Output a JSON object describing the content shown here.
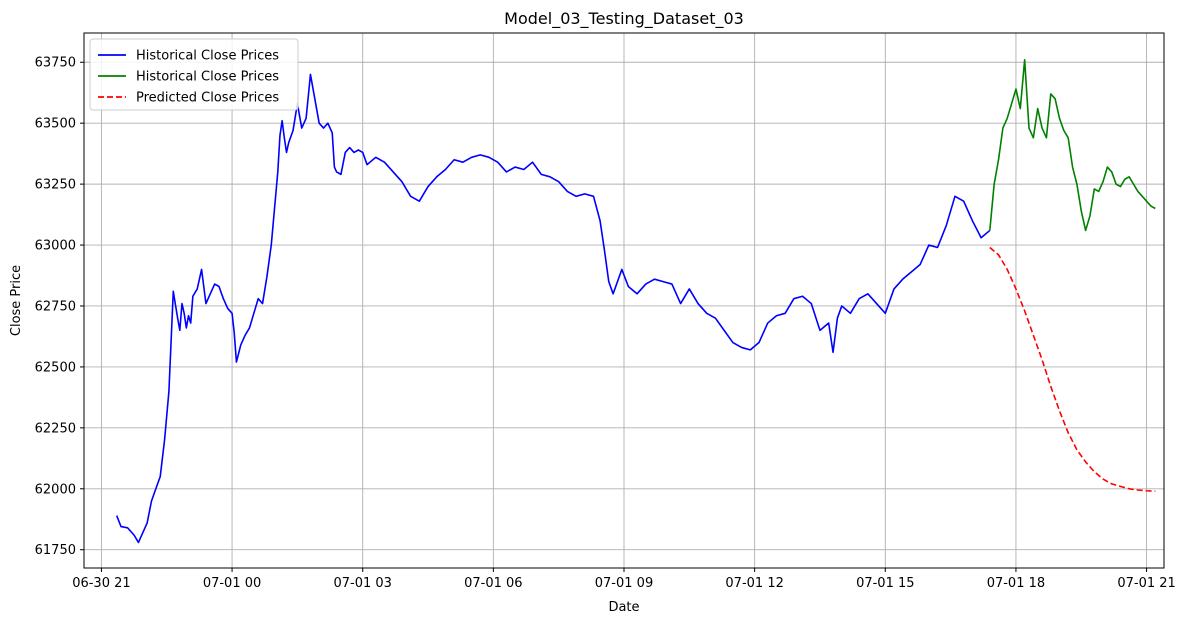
{
  "chart_data": {
    "type": "line",
    "title": "Model_03_Testing_Dataset_03",
    "xlabel": "Date",
    "ylabel": "Close Price",
    "x_unit": "hours since 06-30 21:00",
    "xlim": [
      -0.4,
      24.4
    ],
    "ylim": [
      61675,
      63870
    ],
    "x_ticks": [
      {
        "x": 0,
        "label": "06-30 21"
      },
      {
        "x": 3,
        "label": "07-01 00"
      },
      {
        "x": 6,
        "label": "07-01 03"
      },
      {
        "x": 9,
        "label": "07-01 06"
      },
      {
        "x": 12,
        "label": "07-01 09"
      },
      {
        "x": 15,
        "label": "07-01 12"
      },
      {
        "x": 18,
        "label": "07-01 15"
      },
      {
        "x": 21,
        "label": "07-01 18"
      },
      {
        "x": 24,
        "label": "07-01 21"
      }
    ],
    "y_ticks": [
      61750,
      62000,
      62250,
      62500,
      62750,
      63000,
      63250,
      63500,
      63750
    ],
    "grid": true,
    "legend_position": "top-left",
    "series": [
      {
        "name": "Historical Close Prices",
        "color": "#0000ff",
        "style": "solid",
        "x": [
          0.35,
          0.45,
          0.6,
          0.75,
          0.85,
          0.95,
          1.05,
          1.15,
          1.25,
          1.35,
          1.45,
          1.55,
          1.65,
          1.75,
          1.8,
          1.85,
          1.9,
          1.95,
          2.0,
          2.05,
          2.1,
          2.2,
          2.3,
          2.4,
          2.5,
          2.6,
          2.7,
          2.8,
          2.9,
          3.0,
          3.05,
          3.1,
          3.2,
          3.3,
          3.4,
          3.5,
          3.6,
          3.7,
          3.8,
          3.9,
          4.0,
          4.05,
          4.1,
          4.15,
          4.2,
          4.25,
          4.3,
          4.4,
          4.5,
          4.6,
          4.7,
          4.8,
          4.9,
          5.0,
          5.1,
          5.2,
          5.3,
          5.35,
          5.4,
          5.5,
          5.6,
          5.7,
          5.8,
          5.9,
          6.0,
          6.1,
          6.3,
          6.5,
          6.7,
          6.9,
          7.1,
          7.3,
          7.5,
          7.7,
          7.9,
          8.1,
          8.3,
          8.5,
          8.7,
          8.9,
          9.1,
          9.3,
          9.5,
          9.7,
          9.9,
          10.1,
          10.3,
          10.5,
          10.7,
          10.9,
          11.1,
          11.3,
          11.45,
          11.55,
          11.65,
          11.75,
          11.85,
          11.95,
          12.1,
          12.3,
          12.5,
          12.7,
          12.9,
          13.1,
          13.3,
          13.5,
          13.7,
          13.9,
          14.1,
          14.3,
          14.5,
          14.7,
          14.9,
          15.1,
          15.3,
          15.5,
          15.7,
          15.9,
          16.1,
          16.3,
          16.5,
          16.7,
          16.8,
          16.9,
          17.0,
          17.2,
          17.4,
          17.6,
          17.8,
          18.0,
          18.2,
          18.4,
          18.6,
          18.8,
          19.0,
          19.2,
          19.4,
          19.6,
          19.8,
          20.0,
          20.2,
          20.4
        ],
        "y": [
          61890,
          61845,
          61840,
          61810,
          61780,
          61820,
          61860,
          61950,
          62000,
          62050,
          62200,
          62400,
          62810,
          62700,
          62650,
          62760,
          62720,
          62660,
          62710,
          62680,
          62790,
          62820,
          62900,
          62760,
          62800,
          62840,
          62830,
          62780,
          62740,
          62720,
          62640,
          62520,
          62590,
          62630,
          62660,
          62720,
          62780,
          62760,
          62870,
          63000,
          63200,
          63300,
          63450,
          63510,
          63440,
          63380,
          63420,
          63470,
          63580,
          63480,
          63520,
          63700,
          63600,
          63500,
          63480,
          63500,
          63460,
          63320,
          63300,
          63290,
          63380,
          63400,
          63380,
          63390,
          63380,
          63330,
          63360,
          63340,
          63300,
          63260,
          63200,
          63180,
          63240,
          63280,
          63310,
          63350,
          63340,
          63360,
          63370,
          63360,
          63340,
          63300,
          63320,
          63310,
          63340,
          63290,
          63280,
          63260,
          63220,
          63200,
          63210,
          63200,
          63100,
          62980,
          62850,
          62800,
          62850,
          62900,
          62830,
          62800,
          62840,
          62860,
          62850,
          62840,
          62760,
          62820,
          62760,
          62720,
          62700,
          62650,
          62600,
          62580,
          62570,
          62600,
          62680,
          62710,
          62720,
          62780,
          62790,
          62760,
          62650,
          62680,
          62560,
          62700,
          62750,
          62720,
          62780,
          62800,
          62760,
          62720,
          62820,
          62860,
          62890,
          62920,
          63000,
          62990,
          63080,
          63200,
          63180,
          63100,
          63030,
          63060
        ]
      },
      {
        "name": "Historical Close Prices",
        "color": "#008000",
        "style": "solid",
        "x": [
          20.4,
          20.5,
          20.6,
          20.7,
          20.8,
          20.9,
          21.0,
          21.1,
          21.2,
          21.3,
          21.4,
          21.5,
          21.6,
          21.7,
          21.8,
          21.9,
          22.0,
          22.1,
          22.2,
          22.3,
          22.4,
          22.5,
          22.6,
          22.7,
          22.8,
          22.9,
          23.0,
          23.1,
          23.2,
          23.3,
          23.4,
          23.5,
          23.6,
          23.7,
          23.8,
          23.9,
          24.0,
          24.1,
          24.2
        ],
        "y": [
          63060,
          63250,
          63350,
          63480,
          63520,
          63580,
          63640,
          63560,
          63760,
          63480,
          63440,
          63560,
          63480,
          63440,
          63620,
          63600,
          63520,
          63470,
          63440,
          63320,
          63250,
          63140,
          63060,
          63120,
          63230,
          63220,
          63260,
          63320,
          63300,
          63250,
          63240,
          63270,
          63280,
          63250,
          63220,
          63200,
          63180,
          63160,
          63150
        ]
      },
      {
        "name": "Predicted Close Prices",
        "color": "#ff0000",
        "style": "dashed",
        "x": [
          20.4,
          20.6,
          20.8,
          21.0,
          21.2,
          21.4,
          21.6,
          21.8,
          22.0,
          22.2,
          22.4,
          22.6,
          22.8,
          23.0,
          23.2,
          23.4,
          23.6,
          23.8,
          24.0,
          24.2
        ],
        "y": [
          62990,
          62960,
          62900,
          62820,
          62730,
          62630,
          62530,
          62420,
          62320,
          62230,
          62160,
          62110,
          62070,
          62040,
          62020,
          62010,
          62000,
          61995,
          61992,
          61990
        ]
      }
    ]
  }
}
